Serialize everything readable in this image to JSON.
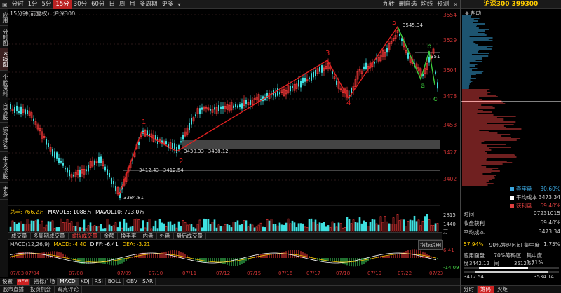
{
  "toolbar": {
    "items": [
      "分时",
      "1分",
      "5分",
      "15分",
      "30分",
      "60分",
      "日",
      "周",
      "月",
      "多周期",
      "更多"
    ],
    "active_index": 3,
    "right_items": [
      "九转",
      "删自选",
      "均线",
      "预测"
    ]
  },
  "sidebar": {
    "items": [
      "应用",
      "分时图",
      "K线图",
      "个股资料",
      "自选股",
      "综合排名",
      "牛叉诊股",
      "更多"
    ],
    "active_index": 2
  },
  "chart_header": {
    "period_label": "15分钟(前复权)",
    "instrument": "沪深300"
  },
  "price_axis": [
    "3554",
    "3529",
    "3504",
    "3478",
    "3453",
    "3427",
    "3402"
  ],
  "annotations": {
    "wave_labels": [
      "1",
      "2",
      "3",
      "4",
      "5",
      "a",
      "b",
      "c"
    ],
    "high_label": "3545.34",
    "low_label": "3384.81",
    "zone1": "3412.43~3412.54",
    "zone2": "3430.33~3438.12",
    "right_tag": "3512"
  },
  "volume_info": {
    "label": "总手: 766.2万",
    "mavol5": "MAVOL5: 1088万",
    "mavol10": "MAVOL10: 793.0万",
    "axis": [
      "2815",
      "1440",
      "万"
    ]
  },
  "volume_tabs": [
    "成交量",
    "多周期成交量",
    "虚拟成交量",
    "金额",
    "换手率",
    "内盘",
    "外盘",
    "盘后成交量"
  ],
  "volume_tab_active": 2,
  "macd_info": {
    "label": "MACD(12,26,9)",
    "macd": "MACD: -4.40",
    "diff": "DIFF: -6.41",
    "dea": "DEA: -3.21",
    "axis_top": "6.41",
    "axis_bottom": "-14.09",
    "indicator_button": "指标说明"
  },
  "date_axis": [
    "07/03",
    "07/04",
    "07/08",
    "07/09",
    "07/10",
    "07/11",
    "07/12",
    "07/15",
    "07/16",
    "07/17",
    "07/18",
    "07/19",
    "07/22",
    "07/23"
  ],
  "bottom_tabs": [
    "设置",
    "NEW",
    "指标广场",
    "MACD",
    "KDJ",
    "RSI",
    "BOLL",
    "OBV",
    "SAR"
  ],
  "bottom_tab_active": 3,
  "bottom2_tabs": [
    "股市直播",
    "投资机会",
    "观点评论"
  ],
  "right_panel": {
    "title": "沪深300 399300",
    "help": "帮助",
    "legend": [
      {
        "label": "套牢盘",
        "value": "30.60%",
        "color": "#3aa7e0"
      },
      {
        "label": "平均成本",
        "value": "3473.34",
        "color": "#ffffff"
      },
      {
        "label": "获利盘",
        "value": "69.40%",
        "color": "#e04040"
      }
    ],
    "rows": [
      {
        "k": "时间",
        "v": "07231015"
      },
      {
        "k": "收盘获利",
        "v": "69.40%"
      },
      {
        "k": "平均成本",
        "v": "3473.34"
      }
    ],
    "conc": [
      {
        "pct": "57.94%",
        "k": "90%筹码区间",
        "t": "集中度",
        "v": "1.75%"
      },
      {
        "pct": "",
        "k": "应用面盘度",
        "t": "70%筹码区间",
        "v": "集中度 1.01%"
      }
    ],
    "range1": [
      "3442.12",
      "3512.57"
    ],
    "range2": [
      "3412.54",
      "3534.14"
    ],
    "bottom_tabs": [
      "分时",
      "筹码",
      "火炬"
    ],
    "bottom_active": 1
  }
}
